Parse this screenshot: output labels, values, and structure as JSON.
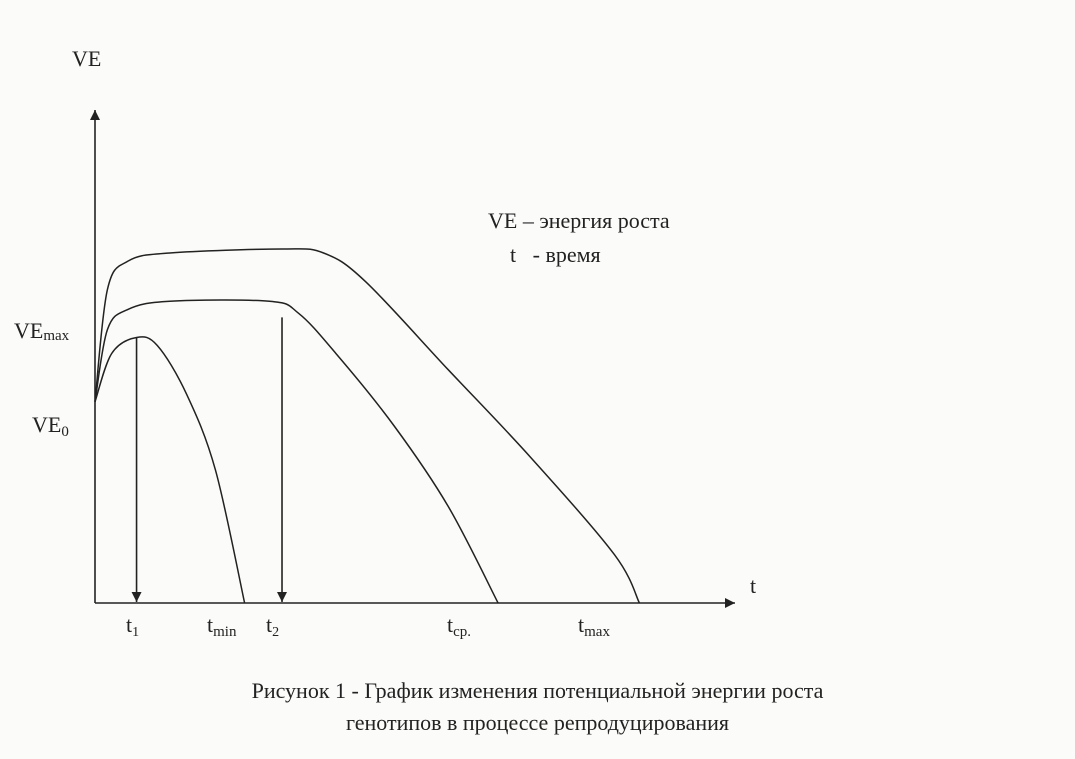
{
  "chart_data": {
    "type": "line",
    "title": "",
    "y_axis": {
      "label": "VE"
    },
    "x_axis": {
      "label": "t"
    },
    "y_tick_labels": [
      {
        "main": "VE",
        "sub": "max"
      },
      {
        "main": "VE",
        "sub": "0"
      }
    ],
    "x_tick_labels": [
      {
        "main": "t",
        "sub": "1"
      },
      {
        "main": "t",
        "sub": "min"
      },
      {
        "main": "t",
        "sub": "2"
      },
      {
        "main": "t",
        "sub": "ср."
      },
      {
        "main": "t",
        "sub": "max"
      }
    ],
    "x_ticks": {
      "t1": 1.0,
      "tmin": 3.6,
      "t2": 4.5,
      "tcp": 9.7,
      "tmax": 13.1
    },
    "y_levels": {
      "VE0": 0.5,
      "VEmax": 0.75,
      "peak_upper": 0.88
    },
    "xlim": [
      0,
      15.4
    ],
    "ylim": [
      0,
      1.3
    ],
    "grid": false,
    "series": [
      {
        "points": [
          [
            0,
            0.5
          ],
          [
            0.3,
            0.78
          ],
          [
            0.8,
            0.85
          ],
          [
            1.8,
            0.87
          ],
          [
            4.5,
            0.88
          ],
          [
            5.5,
            0.87
          ],
          [
            6.5,
            0.8
          ],
          [
            8.5,
            0.58
          ],
          [
            10.5,
            0.36
          ],
          [
            12.5,
            0.12
          ],
          [
            13.1,
            0.0
          ]
        ]
      },
      {
        "points": [
          [
            0,
            0.5
          ],
          [
            0.3,
            0.68
          ],
          [
            0.8,
            0.73
          ],
          [
            1.8,
            0.75
          ],
          [
            4.2,
            0.75
          ],
          [
            4.9,
            0.72
          ],
          [
            5.8,
            0.62
          ],
          [
            7.2,
            0.44
          ],
          [
            8.5,
            0.24
          ],
          [
            9.7,
            0.0
          ]
        ]
      },
      {
        "points": [
          [
            0,
            0.5
          ],
          [
            0.4,
            0.62
          ],
          [
            1.0,
            0.66
          ],
          [
            1.5,
            0.64
          ],
          [
            2.2,
            0.52
          ],
          [
            2.9,
            0.33
          ],
          [
            3.6,
            0.0
          ]
        ]
      }
    ],
    "arrows": [
      {
        "at": "t1",
        "from_y": 0.66,
        "to_y": 0.0
      },
      {
        "at": "t2",
        "from_y": 0.71,
        "to_y": 0.0
      }
    ]
  },
  "legend": {
    "line1": "VE – энергия роста",
    "line2": "t   - время"
  },
  "caption": {
    "line1": "Рисунок 1 -  График изменения потенциальной энергии роста",
    "line2": "генотипов в процессе репродуцирования"
  },
  "colors": {
    "ink": "#222222",
    "background": "#fbfbf9"
  }
}
